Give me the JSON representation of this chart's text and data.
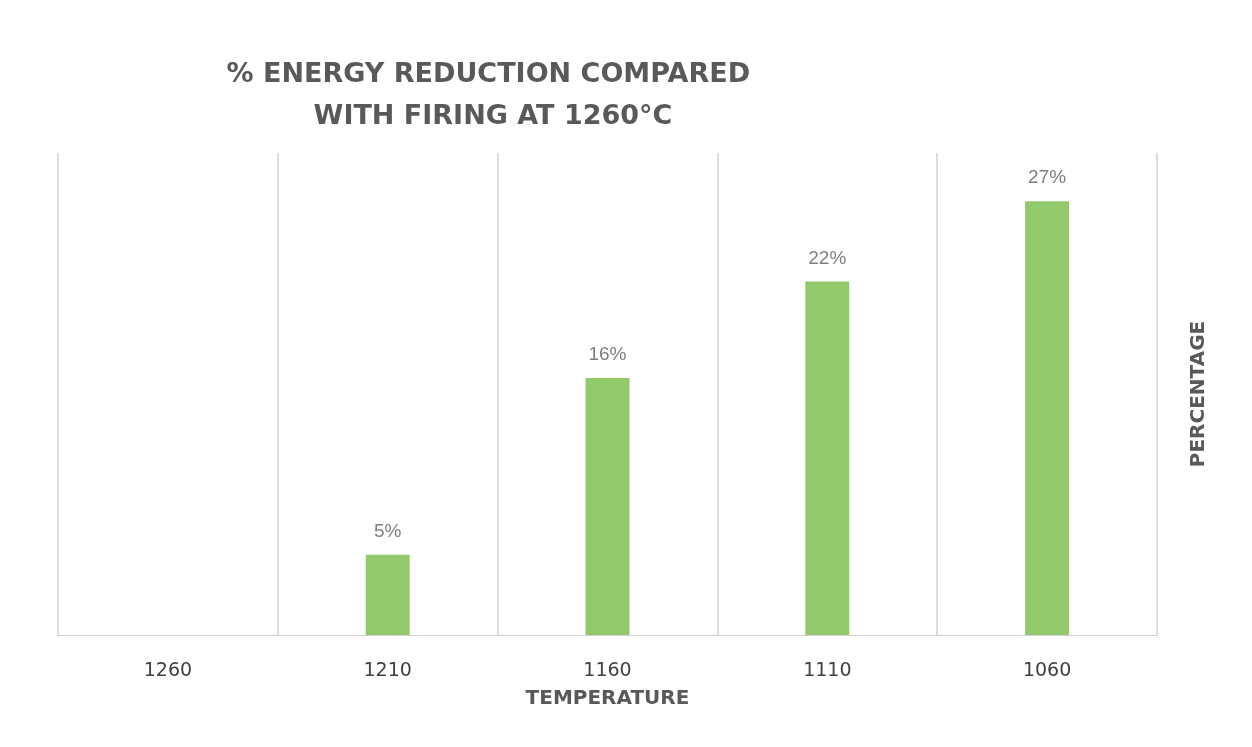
{
  "chart_data": {
    "type": "bar",
    "title": "% ENERGY REDUCTION COMPARED WITH FIRING AT 1260°C",
    "xlabel": "TEMPERATURE",
    "ylabel": "PERCENTAGE",
    "categories": [
      "1260",
      "1210",
      "1160",
      "1110",
      "1060"
    ],
    "values": [
      0,
      5,
      16,
      22,
      27
    ],
    "value_labels": [
      null,
      "5%",
      "16%",
      "22%",
      "27%"
    ],
    "color": "#92c96a",
    "grid": "x"
  }
}
